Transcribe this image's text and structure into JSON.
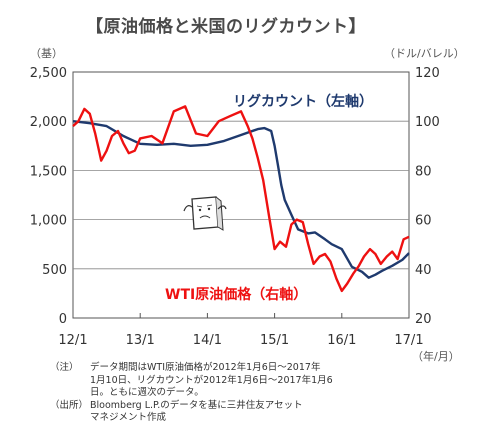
{
  "title": "【原油価格と米国のリグカウント】",
  "left_unit": "（基）",
  "right_unit": "（ドル/バレル）",
  "x_unit": "（年/月）",
  "series_labels": {
    "rig": "リグカウント（左軸）",
    "wti": "WTI原油価格（右軸）"
  },
  "icon": "worried-character-icon",
  "colors": {
    "rig": "#1f3a6e",
    "wti": "#ee1111",
    "grid": "#888888",
    "axis": "#555555"
  },
  "notes": [
    {
      "tag": "（注）",
      "text": "データ期間はWTI原油価格が2012年1月6日～2017年\n1月10日、リグカウントが2012年1月6日～2017年1月6\n日。ともに週次のデータ。"
    },
    {
      "tag": "（出所）",
      "text": "Bloomberg L.P.のデータを基に三井住友アセット\nマネジメント作成"
    }
  ],
  "chart_data": {
    "type": "line",
    "x_ticks": [
      "12/1",
      "13/1",
      "14/1",
      "15/1",
      "16/1",
      "17/1"
    ],
    "y_left": {
      "ticks": [
        "0",
        "500",
        "1,000",
        "1,500",
        "2,000",
        "2,500"
      ],
      "min": 0,
      "max": 2500
    },
    "y_right": {
      "ticks": [
        "20",
        "40",
        "60",
        "80",
        "100",
        "120"
      ],
      "min": 20,
      "max": 120
    },
    "grid": true,
    "series": [
      {
        "name": "リグカウント（左軸）",
        "axis": "left",
        "x": [
          2012.0,
          2012.25,
          2012.5,
          2012.75,
          2013.0,
          2013.25,
          2013.5,
          2013.75,
          2014.0,
          2014.25,
          2014.5,
          2014.75,
          2014.85,
          2014.95,
          2015.0,
          2015.05,
          2015.1,
          2015.15,
          2015.25,
          2015.35,
          2015.5,
          2015.6,
          2015.75,
          2015.85,
          2016.0,
          2016.15,
          2016.3,
          2016.4,
          2016.5,
          2016.6,
          2016.75,
          2016.9,
          2017.0
        ],
        "values": [
          2000,
          1980,
          1950,
          1850,
          1770,
          1760,
          1770,
          1750,
          1760,
          1800,
          1860,
          1920,
          1930,
          1900,
          1750,
          1550,
          1350,
          1200,
          1050,
          900,
          860,
          870,
          800,
          750,
          700,
          520,
          470,
          410,
          440,
          480,
          530,
          590,
          660
        ]
      },
      {
        "name": "WTI原油価格（右軸）",
        "axis": "right",
        "x": [
          2012.0,
          2012.08,
          2012.17,
          2012.25,
          2012.33,
          2012.42,
          2012.5,
          2012.58,
          2012.67,
          2012.75,
          2012.83,
          2012.92,
          2013.0,
          2013.17,
          2013.33,
          2013.5,
          2013.67,
          2013.83,
          2014.0,
          2014.17,
          2014.33,
          2014.5,
          2014.6,
          2014.67,
          2014.75,
          2014.83,
          2014.92,
          2015.0,
          2015.08,
          2015.17,
          2015.25,
          2015.33,
          2015.42,
          2015.5,
          2015.58,
          2015.67,
          2015.75,
          2015.83,
          2015.92,
          2016.0,
          2016.08,
          2016.17,
          2016.25,
          2016.33,
          2016.42,
          2016.5,
          2016.58,
          2016.67,
          2016.75,
          2016.83,
          2016.92,
          2017.0
        ],
        "values": [
          98,
          100,
          105,
          103,
          95,
          84,
          88,
          94,
          96,
          91,
          87,
          88,
          93,
          94,
          91,
          104,
          106,
          95,
          94,
          100,
          102,
          104,
          98,
          93,
          85,
          76,
          61,
          48,
          51,
          49,
          58,
          60,
          59,
          50,
          42,
          45,
          46,
          43,
          36,
          31,
          34,
          38,
          41,
          45,
          48,
          46,
          42,
          45,
          47,
          44,
          52,
          53
        ]
      }
    ]
  }
}
